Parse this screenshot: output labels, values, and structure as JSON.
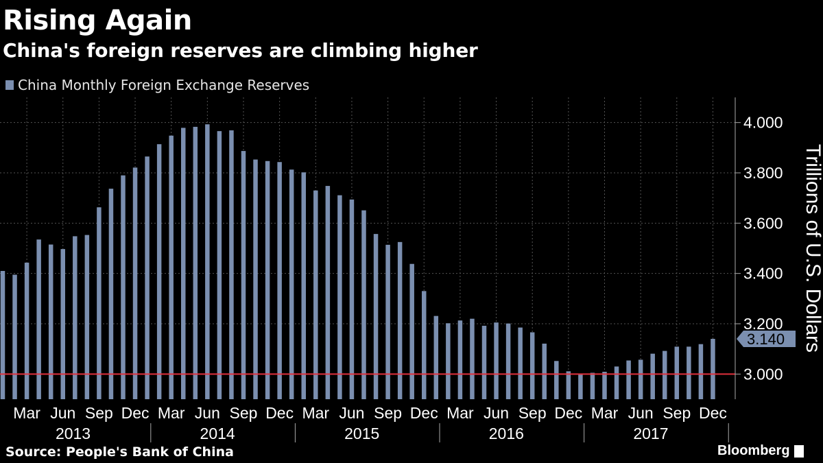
{
  "header": {
    "title": "Rising Again",
    "subtitle": "China's foreign reserves are climbing higher"
  },
  "legend": {
    "label": "China Monthly Foreign Exchange Reserves"
  },
  "footer": {
    "source": "Source: People's Bank of China",
    "brand": "Bloomberg"
  },
  "colors": {
    "bar": "#7b8fb0",
    "reference_line": "#e0303c",
    "grid": "#555555",
    "background": "#000000"
  },
  "chart_data": {
    "type": "bar",
    "title": "Rising Again",
    "subtitle": "China's foreign reserves are climbing higher",
    "series_name": "China Monthly Foreign Exchange Reserves",
    "ylabel": "Trillions of U.S. Dollars",
    "xlabel": "",
    "ylim": [
      2.9,
      4.1
    ],
    "yticks": [
      "3.000",
      "3.200",
      "3.400",
      "3.600",
      "3.800",
      "4.000"
    ],
    "ytick_values": [
      3.0,
      3.2,
      3.4,
      3.6,
      3.8,
      4.0
    ],
    "reference_line": 3.0,
    "last_value_label": "3.140",
    "month_ticks": [
      "Mar",
      "Jun",
      "Sep",
      "Dec",
      "Mar",
      "Jun",
      "Sep",
      "Dec",
      "Mar",
      "Jun",
      "Sep",
      "Dec",
      "Mar",
      "Jun",
      "Sep",
      "Dec",
      "Mar",
      "Jun",
      "Sep",
      "Dec"
    ],
    "years": [
      "2013",
      "2014",
      "2015",
      "2016",
      "2017"
    ],
    "categories": [
      "2013-01",
      "2013-02",
      "2013-03",
      "2013-04",
      "2013-05",
      "2013-06",
      "2013-07",
      "2013-08",
      "2013-09",
      "2013-10",
      "2013-11",
      "2013-12",
      "2014-01",
      "2014-02",
      "2014-03",
      "2014-04",
      "2014-05",
      "2014-06",
      "2014-07",
      "2014-08",
      "2014-09",
      "2014-10",
      "2014-11",
      "2014-12",
      "2015-01",
      "2015-02",
      "2015-03",
      "2015-04",
      "2015-05",
      "2015-06",
      "2015-07",
      "2015-08",
      "2015-09",
      "2015-10",
      "2015-11",
      "2015-12",
      "2016-01",
      "2016-02",
      "2016-03",
      "2016-04",
      "2016-05",
      "2016-06",
      "2016-07",
      "2016-08",
      "2016-09",
      "2016-10",
      "2016-11",
      "2016-12",
      "2017-01",
      "2017-02",
      "2017-03",
      "2017-04",
      "2017-05",
      "2017-06",
      "2017-07",
      "2017-08",
      "2017-09",
      "2017-10",
      "2017-11",
      "2017-12"
    ],
    "values": [
      3.41,
      3.395,
      3.443,
      3.535,
      3.515,
      3.497,
      3.548,
      3.553,
      3.663,
      3.737,
      3.79,
      3.821,
      3.865,
      3.914,
      3.948,
      3.979,
      3.983,
      3.993,
      3.966,
      3.969,
      3.887,
      3.853,
      3.847,
      3.843,
      3.813,
      3.802,
      3.73,
      3.748,
      3.711,
      3.694,
      3.651,
      3.557,
      3.514,
      3.525,
      3.438,
      3.33,
      3.231,
      3.202,
      3.213,
      3.22,
      3.192,
      3.205,
      3.201,
      3.185,
      3.166,
      3.121,
      3.052,
      3.011,
      2.998,
      3.005,
      3.009,
      3.03,
      3.054,
      3.057,
      3.081,
      3.092,
      3.109,
      3.109,
      3.119,
      3.14
    ]
  }
}
